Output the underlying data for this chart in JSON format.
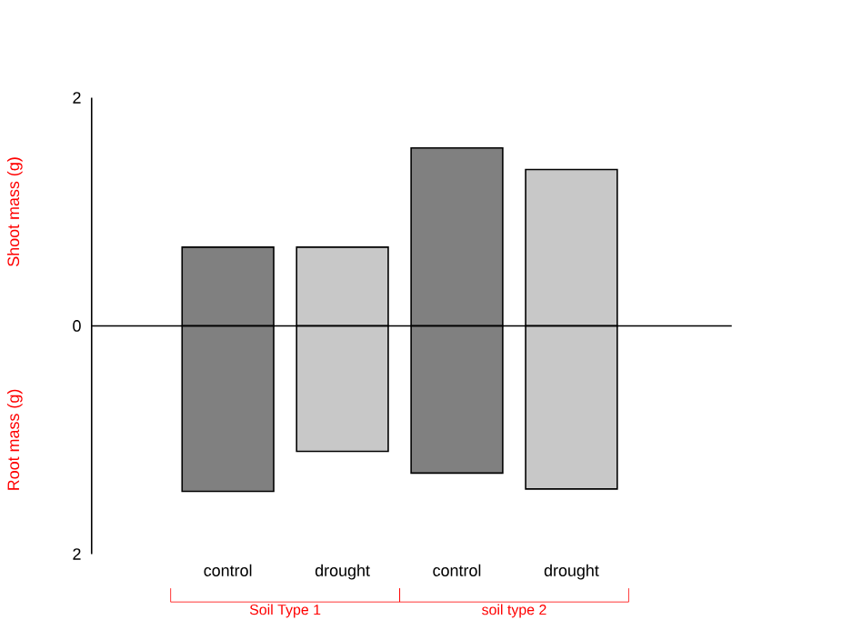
{
  "chart_data": {
    "type": "bar",
    "ylabel": "Shoot mass (g)",
    "categories": [
      "control",
      "drought",
      "control",
      "drought"
    ],
    "series": [
      {
        "colors": [
          "#808080",
          "#c8c8c8",
          "#808080",
          "#c8c8c8"
        ],
        "values": [
          0.69,
          0.69,
          1.56,
          1.37
        ]
      },
      {
        "colors": [
          "#808080",
          "#c8c8c8",
          "#808080",
          "#c8c8c8"
        ],
        "values": [
          -1.45,
          -1.1,
          -1.29,
          -1.43
        ]
      }
    ],
    "stacked": true,
    "ylim": [
      -2,
      2
    ],
    "yticks": [
      {
        "value": -2,
        "label": "2"
      },
      0,
      2
    ],
    "annotations": [
      "Root mass (g)",
      "Soil Type 1",
      "soil type 2"
    ]
  }
}
